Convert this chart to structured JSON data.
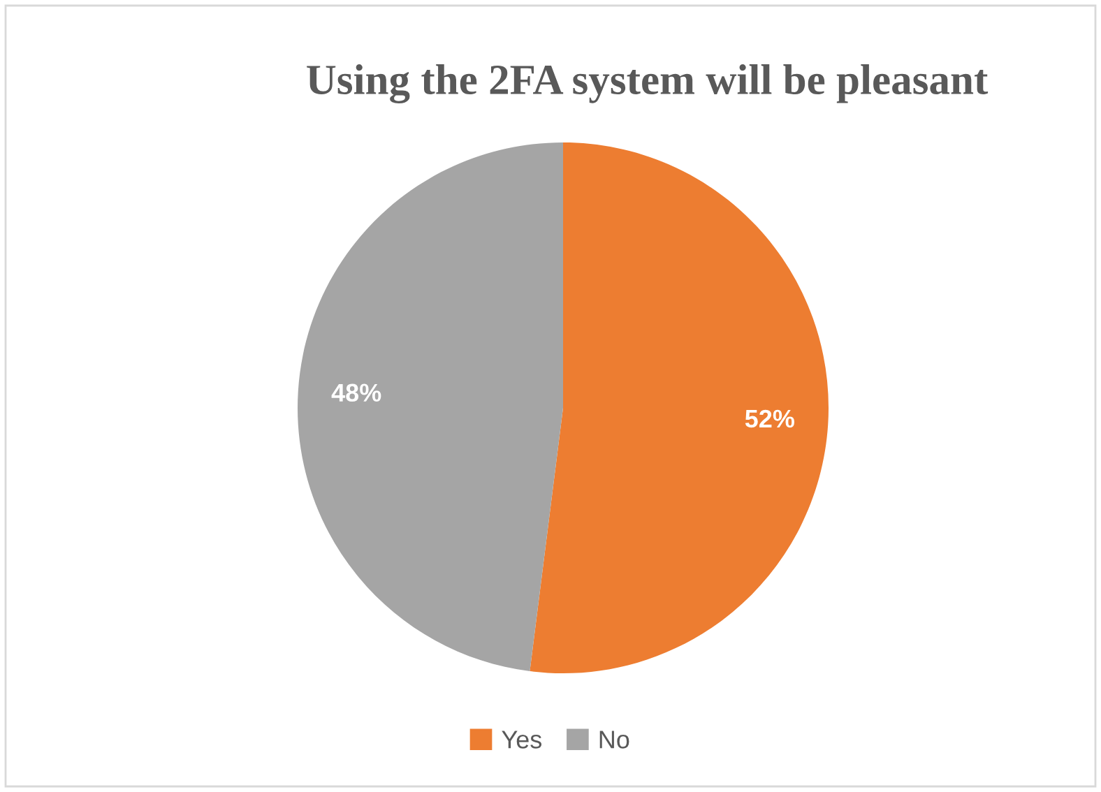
{
  "chart_data": {
    "type": "pie",
    "title": "Using the 2FA system will be pleasant",
    "categories": [
      "Yes",
      "No"
    ],
    "values": [
      52,
      48
    ],
    "colors": [
      "#ed7d31",
      "#a5a5a5"
    ],
    "value_labels": [
      "52%",
      "48%"
    ],
    "legend": "bottom"
  }
}
